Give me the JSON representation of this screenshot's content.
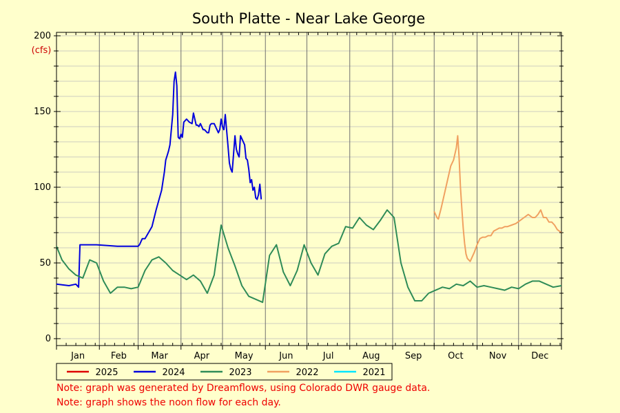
{
  "chart_data": {
    "type": "line",
    "title": "South Platte - Near Lake George",
    "ylabel": "(cfs)",
    "ylim": [
      0,
      200
    ],
    "y_ticks": [
      0,
      50,
      100,
      150,
      200
    ],
    "x_unit": "day of year",
    "xlim": [
      1,
      366
    ],
    "month_labels": [
      "Jan",
      "Feb",
      "Mar",
      "Apr",
      "May",
      "Jun",
      "Jul",
      "Aug",
      "Sep",
      "Oct",
      "Nov",
      "Dec"
    ],
    "grid": true,
    "legend_position": "bottom",
    "series": [
      {
        "name": "2025",
        "color": "#dd0000",
        "x": [],
        "y": []
      },
      {
        "name": "2024",
        "color": "#0000dd",
        "x": [
          1,
          10,
          15,
          17,
          18,
          30,
          45,
          60,
          61,
          62,
          63,
          64,
          65,
          70,
          73,
          77,
          78,
          79,
          80,
          81,
          82,
          83,
          85,
          86,
          87,
          88,
          89,
          90,
          91,
          92,
          93,
          95,
          97,
          99,
          100,
          102,
          103,
          104,
          105,
          107,
          108,
          110,
          111,
          112,
          113,
          115,
          116,
          117,
          118,
          119,
          120,
          121,
          122,
          123,
          125,
          126,
          127,
          128,
          130,
          131,
          132,
          133,
          134,
          135,
          137,
          138,
          139,
          140,
          141,
          142,
          143,
          144,
          145,
          146,
          147,
          148,
          149
        ],
        "y": [
          36,
          35,
          36,
          34,
          62,
          62,
          61,
          61,
          62,
          64,
          66,
          66,
          66,
          74,
          85,
          98,
          104,
          110,
          118,
          121,
          124,
          128,
          148,
          170,
          176,
          167,
          133,
          132,
          135,
          133,
          143,
          145,
          143,
          142,
          149,
          141,
          141,
          140,
          142,
          138,
          138,
          136,
          136,
          141,
          142,
          142,
          140,
          138,
          136,
          138,
          145,
          140,
          138,
          148,
          127,
          116,
          112,
          110,
          134,
          125,
          122,
          120,
          134,
          132,
          128,
          119,
          118,
          112,
          103,
          105,
          98,
          100,
          93,
          92,
          95,
          102,
          92
        ]
      },
      {
        "name": "2023",
        "color": "#2e8b57",
        "x": [
          1,
          5,
          10,
          15,
          20,
          25,
          30,
          35,
          40,
          45,
          50,
          55,
          60,
          65,
          70,
          75,
          80,
          85,
          90,
          95,
          100,
          105,
          110,
          115,
          120,
          125,
          130,
          135,
          140,
          145,
          150,
          155,
          160,
          165,
          170,
          175,
          180,
          185,
          190,
          195,
          200,
          205,
          210,
          215,
          220,
          225,
          230,
          235,
          240,
          245,
          250,
          255,
          260,
          265,
          270,
          275,
          280,
          285,
          290,
          295,
          300,
          305,
          310,
          315,
          320,
          325,
          330,
          335,
          340,
          345,
          350,
          355,
          360,
          366
        ],
        "y": [
          61,
          52,
          46,
          42,
          40,
          52,
          50,
          38,
          30,
          34,
          34,
          33,
          34,
          45,
          52,
          54,
          50,
          45,
          42,
          39,
          42,
          38,
          30,
          42,
          75,
          60,
          48,
          35,
          28,
          26,
          24,
          55,
          62,
          44,
          35,
          45,
          62,
          50,
          42,
          56,
          61,
          63,
          74,
          73,
          80,
          75,
          72,
          78,
          85,
          80,
          50,
          34,
          25,
          25,
          30,
          32,
          34,
          33,
          36,
          35,
          38,
          34,
          35,
          34,
          33,
          32,
          34,
          33,
          36,
          38,
          38,
          36,
          34,
          35
        ]
      },
      {
        "name": "2022",
        "color": "#f0a060",
        "x": [
          274,
          276,
          277,
          279,
          281,
          283,
          285,
          286,
          288,
          290,
          291,
          292,
          293,
          294,
          295,
          296,
          297,
          298,
          299,
          300,
          303,
          305,
          307,
          309,
          311,
          313,
          315,
          317,
          319,
          321,
          323,
          325,
          327,
          330,
          333,
          336,
          339,
          342,
          345,
          347,
          349,
          351,
          353,
          355,
          357,
          359,
          361,
          363,
          366
        ],
        "y": [
          84,
          80,
          79,
          86,
          94,
          102,
          110,
          114,
          118,
          126,
          134,
          120,
          100,
          86,
          73,
          63,
          56,
          53,
          52,
          51,
          57,
          62,
          66,
          67,
          67,
          68,
          68,
          71,
          72,
          73,
          73,
          74,
          74,
          75,
          76,
          78,
          80,
          82,
          80,
          80,
          82,
          85,
          80,
          80,
          77,
          77,
          75,
          72,
          70
        ]
      },
      {
        "name": "2021",
        "color": "#00e5ff",
        "x": [],
        "y": []
      }
    ]
  },
  "notes": [
    "Note: graph was generated by Dreamflows, using Colorado DWR gauge data.",
    "Note: graph shows the noon flow for each day."
  ]
}
